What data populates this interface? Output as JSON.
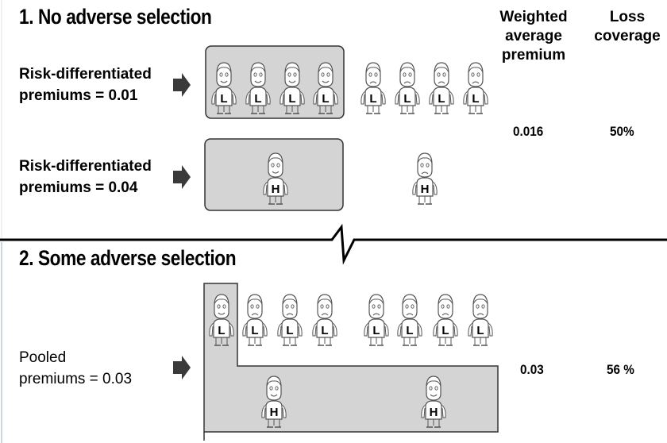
{
  "sections": [
    {
      "title": "1. No adverse selection",
      "rows": [
        {
          "label_line1": "Risk-differentiated",
          "label_line2": "premiums = 0.01"
        },
        {
          "label_line1": "Risk-differentiated",
          "label_line2": "premiums = 0.04"
        }
      ],
      "weighted_average_premium": "0.016",
      "loss_coverage": "50%"
    },
    {
      "title": "2. Some adverse selection",
      "rows": [
        {
          "label_line1": "Pooled",
          "label_line2": "premiums = 0.03"
        }
      ],
      "weighted_average_premium": "0.03",
      "loss_coverage": "56 %"
    }
  ],
  "columns": {
    "weighted_average_premium": [
      "Weighted",
      "average",
      "premium"
    ],
    "loss_coverage": [
      "Loss",
      "coverage"
    ]
  },
  "figure_letters": {
    "low": "L",
    "high": "H"
  },
  "colors": {
    "box_fill": "#d4d4d4",
    "box_stroke": "#333333",
    "arrow": "#3a3a3a",
    "divider": "#000000",
    "figure_stroke": "#555555"
  }
}
